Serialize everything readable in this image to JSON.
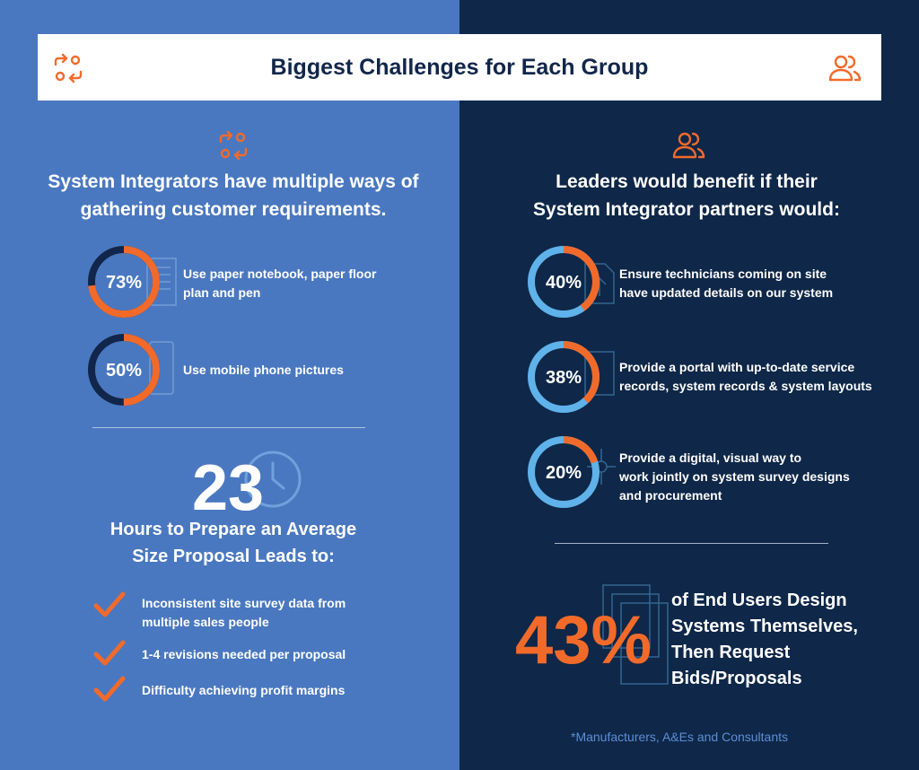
{
  "title": "Biggest Challenges for Each Group",
  "colors": {
    "orange": "#f26a2a",
    "navy_ring": "#11264a",
    "light_blue_ring": "#5fb2ea",
    "left_bg": "#4a78c0",
    "right_bg": "#0f2748"
  },
  "icons": {
    "integrators": "arrows-exchange-icon",
    "leaders": "users-icon"
  },
  "left": {
    "heading_line1": "System Integrators have multiple ways of",
    "heading_line2": "gathering customer requirements.",
    "stats": [
      {
        "percent": 73,
        "label": "73%",
        "text_line1": "Use paper notebook, paper floor",
        "text_line2": "plan and pen"
      },
      {
        "percent": 50,
        "label": "50%",
        "text_line1": "Use mobile phone pictures",
        "text_line2": ""
      }
    ],
    "hours_value": "23",
    "hours_line1": "Hours to Prepare an Average",
    "hours_line2": "Size Proposal Leads to:",
    "checks": [
      {
        "line1": "Inconsistent site survey data from",
        "line2": "multiple sales people"
      },
      {
        "line1": "1-4 revisions needed per proposal",
        "line2": ""
      },
      {
        "line1": "Difficulty achieving profit margins",
        "line2": ""
      }
    ]
  },
  "right": {
    "heading_line1": "Leaders would benefit if their",
    "heading_line2": "System Integrator partners would:",
    "stats": [
      {
        "percent": 40,
        "label": "40%",
        "text_line1": "Ensure technicians coming on site",
        "text_line2": "have updated details on our system",
        "text_line3": ""
      },
      {
        "percent": 38,
        "label": "38%",
        "text_line1": "Provide a portal with up-to-date service",
        "text_line2": "records, system records & system layouts",
        "text_line3": ""
      },
      {
        "percent": 20,
        "label": "20%",
        "text_line1": "Provide a digital, visual way to",
        "text_line2": "work jointly on system survey designs",
        "text_line3": "and procurement"
      }
    ],
    "end_users_pct": "43%",
    "end_users_lines": [
      "of End Users Design",
      "Systems Themselves,",
      "Then Request",
      "Bids/Proposals"
    ],
    "footnote": "*Manufacturers, A&Es and Consultants"
  }
}
